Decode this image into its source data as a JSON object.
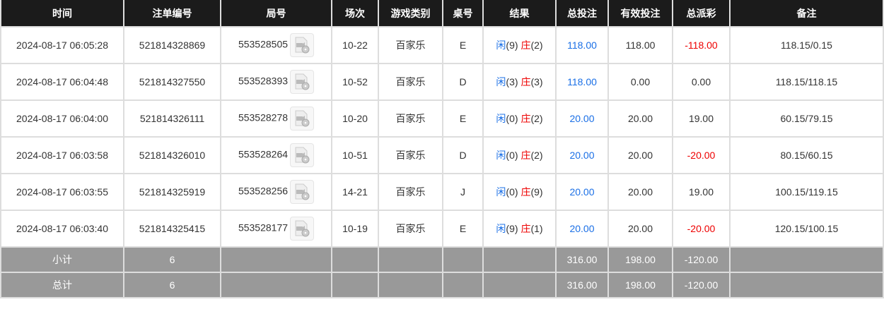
{
  "headers": [
    "时间",
    "注单编号",
    "局号",
    "场次",
    "游戏类别",
    "桌号",
    "结果",
    "总投注",
    "有效投注",
    "总派彩",
    "备注"
  ],
  "rows": [
    {
      "time": "2024-08-17 06:05:28",
      "bet_id": "521814328869",
      "round": "553528505",
      "session": "10-22",
      "game": "百家乐",
      "table": "E",
      "player": "闲",
      "player_val": "(9)",
      "banker": "庄",
      "banker_val": "(2)",
      "total_bet": "118.00",
      "valid_bet": "118.00",
      "payout": "-118.00",
      "payout_color": "red",
      "note": "118.15/0.15"
    },
    {
      "time": "2024-08-17 06:04:48",
      "bet_id": "521814327550",
      "round": "553528393",
      "session": "10-52",
      "game": "百家乐",
      "table": "D",
      "player": "闲",
      "player_val": "(3)",
      "banker": "庄",
      "banker_val": "(3)",
      "total_bet": "118.00",
      "valid_bet": "0.00",
      "payout": "0.00",
      "payout_color": "normal",
      "note": "118.15/118.15"
    },
    {
      "time": "2024-08-17 06:04:00",
      "bet_id": "521814326111",
      "round": "553528278",
      "session": "10-20",
      "game": "百家乐",
      "table": "E",
      "player": "闲",
      "player_val": "(0)",
      "banker": "庄",
      "banker_val": "(2)",
      "total_bet": "20.00",
      "valid_bet": "20.00",
      "payout": "19.00",
      "payout_color": "normal",
      "note": "60.15/79.15"
    },
    {
      "time": "2024-08-17 06:03:58",
      "bet_id": "521814326010",
      "round": "553528264",
      "session": "10-51",
      "game": "百家乐",
      "table": "D",
      "player": "闲",
      "player_val": "(0)",
      "banker": "庄",
      "banker_val": "(2)",
      "total_bet": "20.00",
      "valid_bet": "20.00",
      "payout": "-20.00",
      "payout_color": "red",
      "note": "80.15/60.15"
    },
    {
      "time": "2024-08-17 06:03:55",
      "bet_id": "521814325919",
      "round": "553528256",
      "session": "14-21",
      "game": "百家乐",
      "table": "J",
      "player": "闲",
      "player_val": "(0)",
      "banker": "庄",
      "banker_val": "(9)",
      "total_bet": "20.00",
      "valid_bet": "20.00",
      "payout": "19.00",
      "payout_color": "normal",
      "note": "100.15/119.15"
    },
    {
      "time": "2024-08-17 06:03:40",
      "bet_id": "521814325415",
      "round": "553528177",
      "session": "10-19",
      "game": "百家乐",
      "table": "E",
      "player": "闲",
      "player_val": "(9)",
      "banker": "庄",
      "banker_val": "(1)",
      "total_bet": "20.00",
      "valid_bet": "20.00",
      "payout": "-20.00",
      "payout_color": "red",
      "note": "120.15/100.15"
    }
  ],
  "subtotal": {
    "label": "小计",
    "count": "6",
    "total_bet": "316.00",
    "valid_bet": "198.00",
    "payout": "-120.00"
  },
  "total": {
    "label": "总计",
    "count": "6",
    "total_bet": "316.00",
    "valid_bet": "198.00",
    "payout": "-120.00"
  },
  "colors": {
    "blue": "#1a6fe6",
    "red": "#ee0000",
    "header_bg": "#1b1b1b",
    "summary_bg": "#999999"
  }
}
